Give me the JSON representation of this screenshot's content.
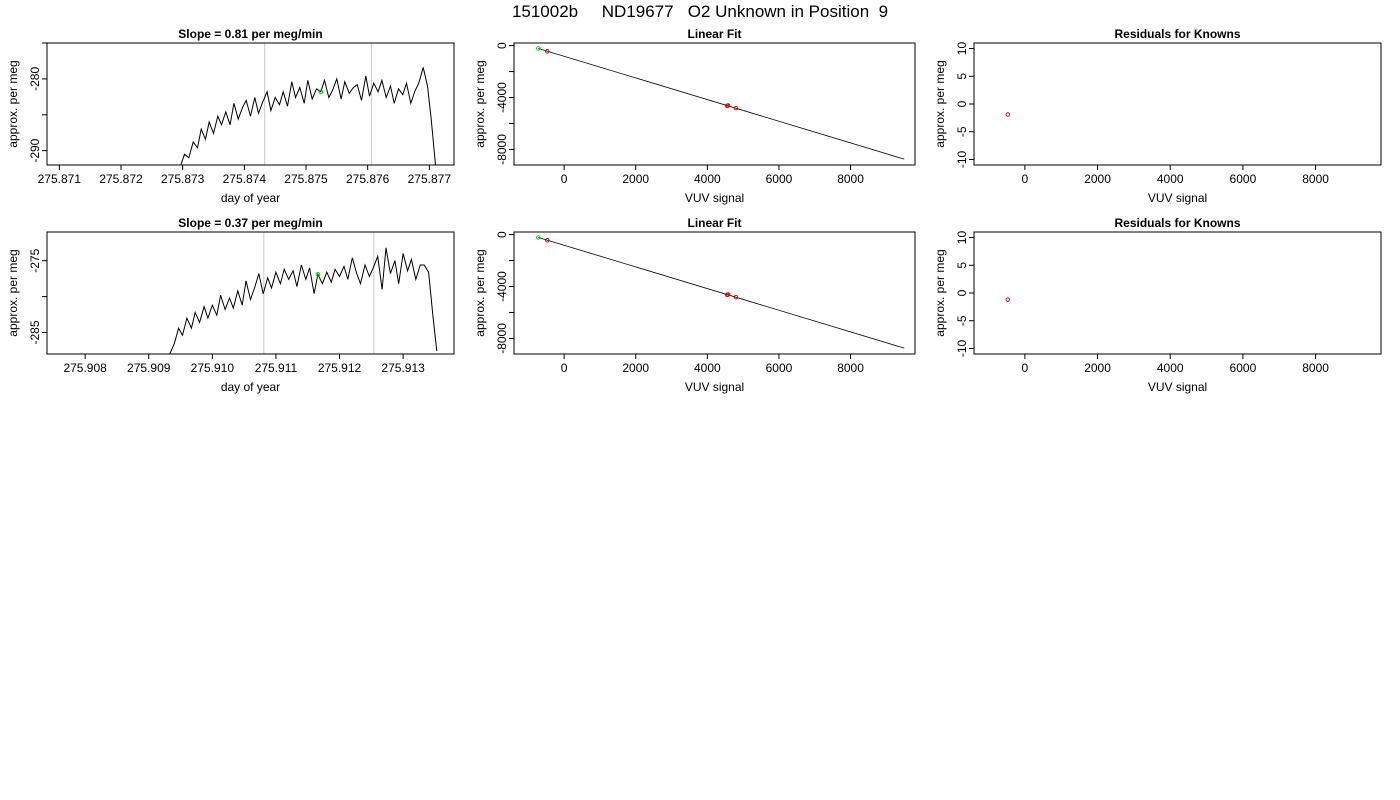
{
  "page": {
    "title": "151002b     ND19677   O2 Unknown in Position  9"
  },
  "chart_data": [
    {
      "id": "r1-time",
      "type": "line",
      "title": "Slope =  0.81  per meg/min",
      "xlabel": "day of year",
      "ylabel": "approx. per meg",
      "xlim": [
        275.8708,
        275.8774
      ],
      "ylim": [
        -292,
        -275
      ],
      "xticks": [
        275.871,
        275.872,
        275.873,
        275.874,
        275.875,
        275.876,
        275.877
      ],
      "xtick_labels": [
        "275.871",
        "275.872",
        "275.873",
        "275.874",
        "275.875",
        "275.876",
        "275.877"
      ],
      "yticks": [
        -290,
        -285,
        -280,
        -275
      ],
      "ytick_labels": [
        "-290",
        "",
        "-280",
        ""
      ],
      "vlines": [
        275.87433,
        275.87606
      ],
      "marker": {
        "x": 275.87524,
        "y": -281.8,
        "color": "#00cc00"
      },
      "series": [
        {
          "color": "#000000",
          "x": [
            275.87297,
            275.87303,
            275.8731,
            275.87317,
            275.87324,
            275.8733,
            275.87337,
            275.87343,
            275.8735,
            275.87357,
            275.87363,
            275.8737,
            275.87377,
            275.87383,
            275.8739,
            275.87397,
            275.87403,
            275.8741,
            275.87417,
            275.87423,
            275.8743,
            275.87437,
            275.87443,
            275.8745,
            275.87457,
            275.87463,
            275.8747,
            275.87477,
            275.87483,
            275.8749,
            275.87497,
            275.87503,
            275.8751,
            275.87517,
            275.87524,
            275.8753,
            275.87537,
            275.87543,
            275.8755,
            275.87557,
            275.87563,
            275.8757,
            275.87577,
            275.87583,
            275.8759,
            275.87597,
            275.87603,
            275.8761,
            275.87617,
            275.87623,
            275.8763,
            275.87637,
            275.87643,
            275.8765,
            275.87657,
            275.87663,
            275.8767,
            275.87677,
            275.87683,
            275.8769,
            275.87697,
            275.87703,
            275.8771
          ],
          "y": [
            -292,
            -290.5,
            -291,
            -288.8,
            -289.6,
            -287,
            -288.4,
            -286,
            -287.6,
            -285.2,
            -286.4,
            -284.6,
            -286.4,
            -283.4,
            -285.6,
            -284,
            -283,
            -285.2,
            -282.6,
            -284.8,
            -283.2,
            -281.8,
            -284.4,
            -282.6,
            -283.6,
            -281.8,
            -283.8,
            -280.4,
            -282.6,
            -281.2,
            -283.4,
            -280.2,
            -282.8,
            -281.4,
            -281.8,
            -280.2,
            -282.6,
            -281.6,
            -280,
            -282.8,
            -280.4,
            -282,
            -281.2,
            -280.8,
            -283,
            -279.6,
            -282.4,
            -280.6,
            -281.8,
            -280.2,
            -282.6,
            -281,
            -283.4,
            -281.4,
            -282.2,
            -280.6,
            -283.4,
            -281.6,
            -280.6,
            -278.4,
            -281,
            -285.6,
            -292
          ]
        }
      ]
    },
    {
      "id": "r1-fit",
      "type": "scatter",
      "title": "Linear Fit",
      "xlabel": "VUV signal",
      "ylabel": "approx. per meg",
      "xlim": [
        -1400,
        9800
      ],
      "ylim": [
        -9200,
        200
      ],
      "xticks": [
        0,
        2000,
        4000,
        6000,
        8000
      ],
      "xtick_labels": [
        "0",
        "2000",
        "4000",
        "6000",
        "8000"
      ],
      "yticks": [
        0,
        -2000,
        -4000,
        -6000,
        -8000
      ],
      "ytick_labels": [
        "0",
        "",
        "-4000",
        "",
        "-8000"
      ],
      "fit_line": {
        "x": [
          -720,
          9500
        ],
        "y": [
          -220,
          -8750
        ]
      },
      "points": [
        {
          "x": -720,
          "y": -220,
          "color": "#00cc00"
        },
        {
          "x": -470,
          "y": -440,
          "color": "#cc0000"
        },
        {
          "x": 4550,
          "y": -4640,
          "color": "#cc0000"
        },
        {
          "x": 4580,
          "y": -4620,
          "color": "#cc0000"
        },
        {
          "x": 4800,
          "y": -4820,
          "color": "#cc0000"
        }
      ]
    },
    {
      "id": "r1-resid",
      "type": "scatter",
      "title": "Residuals for Knowns",
      "xlabel": "VUV signal",
      "ylabel": "approx. per meg",
      "xlim": [
        -1400,
        9800
      ],
      "ylim": [
        -11,
        11
      ],
      "xticks": [
        0,
        2000,
        4000,
        6000,
        8000
      ],
      "xtick_labels": [
        "0",
        "2000",
        "4000",
        "6000",
        "8000"
      ],
      "yticks": [
        10,
        5,
        0,
        -5,
        -10
      ],
      "ytick_labels": [
        "10",
        "5",
        "0",
        "-5",
        "-10"
      ],
      "points": [
        {
          "x": -470,
          "y": -1.9,
          "color": "#cc0000"
        }
      ]
    },
    {
      "id": "r2-time",
      "type": "line",
      "title": "Slope =  0.37  per meg/min",
      "xlabel": "day of year",
      "ylabel": "approx. per meg",
      "xlim": [
        275.9074,
        275.9138
      ],
      "ylim": [
        -288,
        -271
      ],
      "xticks": [
        275.908,
        275.909,
        275.91,
        275.911,
        275.912,
        275.913
      ],
      "xtick_labels": [
        "275.908",
        "275.909",
        "275.910",
        "275.911",
        "275.912",
        "275.913"
      ],
      "yticks": [
        -285,
        -280,
        -275
      ],
      "ytick_labels": [
        "-285",
        "",
        "-275"
      ],
      "vlines": [
        275.91081,
        275.91254
      ],
      "marker": {
        "x": 275.91166,
        "y": -276.9,
        "color": "#00cc00"
      },
      "series": [
        {
          "color": "#000000",
          "x": [
            275.90933,
            275.9094,
            275.90947,
            275.90953,
            275.9096,
            275.90967,
            275.90973,
            275.9098,
            275.90987,
            275.90993,
            275.91,
            275.91007,
            275.91013,
            275.9102,
            275.91027,
            275.91033,
            275.9104,
            275.91047,
            275.91053,
            275.9106,
            275.91067,
            275.91073,
            275.9108,
            275.91087,
            275.91093,
            275.911,
            275.91107,
            275.91113,
            275.9112,
            275.91127,
            275.91133,
            275.9114,
            275.91147,
            275.91153,
            275.9116,
            275.91166,
            275.91173,
            275.9118,
            275.91187,
            275.91193,
            275.912,
            275.91207,
            275.91213,
            275.9122,
            275.91227,
            275.91233,
            275.9124,
            275.91247,
            275.91253,
            275.9126,
            275.91267,
            275.91273,
            275.9128,
            275.91287,
            275.91293,
            275.913,
            275.91307,
            275.91313,
            275.9132,
            275.91327,
            275.91333,
            275.9134,
            275.91347,
            275.91353
          ],
          "y": [
            -288,
            -286.6,
            -284.4,
            -285.4,
            -283,
            -284.4,
            -282.2,
            -283.6,
            -281.4,
            -283,
            -281.2,
            -282.6,
            -279.8,
            -281.8,
            -280.2,
            -281.6,
            -279.2,
            -281.2,
            -277.8,
            -280.4,
            -278.6,
            -276.8,
            -279.6,
            -277.4,
            -278.8,
            -276.6,
            -278.2,
            -276.2,
            -277.6,
            -276.4,
            -278.6,
            -275.6,
            -277.6,
            -276,
            -279.6,
            -276.9,
            -278.2,
            -276.6,
            -278,
            -276.2,
            -277.2,
            -275.8,
            -277.6,
            -274.6,
            -276.8,
            -278.2,
            -275.6,
            -277.2,
            -276,
            -274.4,
            -279,
            -273.2,
            -276.8,
            -275,
            -278.2,
            -274,
            -276.4,
            -274.8,
            -277.6,
            -275.6,
            -275.6,
            -276.6,
            -282.8,
            -287.6
          ]
        }
      ]
    },
    {
      "id": "r2-fit",
      "type": "scatter",
      "title": "Linear Fit",
      "xlabel": "VUV signal",
      "ylabel": "approx. per meg",
      "xlim": [
        -1400,
        9800
      ],
      "ylim": [
        -9200,
        200
      ],
      "xticks": [
        0,
        2000,
        4000,
        6000,
        8000
      ],
      "xtick_labels": [
        "0",
        "2000",
        "4000",
        "6000",
        "8000"
      ],
      "yticks": [
        0,
        -2000,
        -4000,
        -6000,
        -8000
      ],
      "ytick_labels": [
        "0",
        "",
        "-4000",
        "",
        "-8000"
      ],
      "fit_line": {
        "x": [
          -720,
          9500
        ],
        "y": [
          -220,
          -8750
        ]
      },
      "points": [
        {
          "x": -720,
          "y": -220,
          "color": "#00cc00"
        },
        {
          "x": -470,
          "y": -440,
          "color": "#cc0000"
        },
        {
          "x": 4550,
          "y": -4640,
          "color": "#cc0000"
        },
        {
          "x": 4580,
          "y": -4620,
          "color": "#cc0000"
        },
        {
          "x": 4800,
          "y": -4820,
          "color": "#cc0000"
        }
      ]
    },
    {
      "id": "r2-resid",
      "type": "scatter",
      "title": "Residuals for Knowns",
      "xlabel": "VUV signal",
      "ylabel": "approx. per meg",
      "xlim": [
        -1400,
        9800
      ],
      "ylim": [
        -11,
        11
      ],
      "xticks": [
        0,
        2000,
        4000,
        6000,
        8000
      ],
      "xtick_labels": [
        "0",
        "2000",
        "4000",
        "6000",
        "8000"
      ],
      "yticks": [
        10,
        5,
        0,
        -5,
        -10
      ],
      "ytick_labels": [
        "10",
        "5",
        "0",
        "-5",
        "-10"
      ],
      "points": [
        {
          "x": -470,
          "y": -1.2,
          "color": "#cc0000"
        }
      ]
    }
  ]
}
